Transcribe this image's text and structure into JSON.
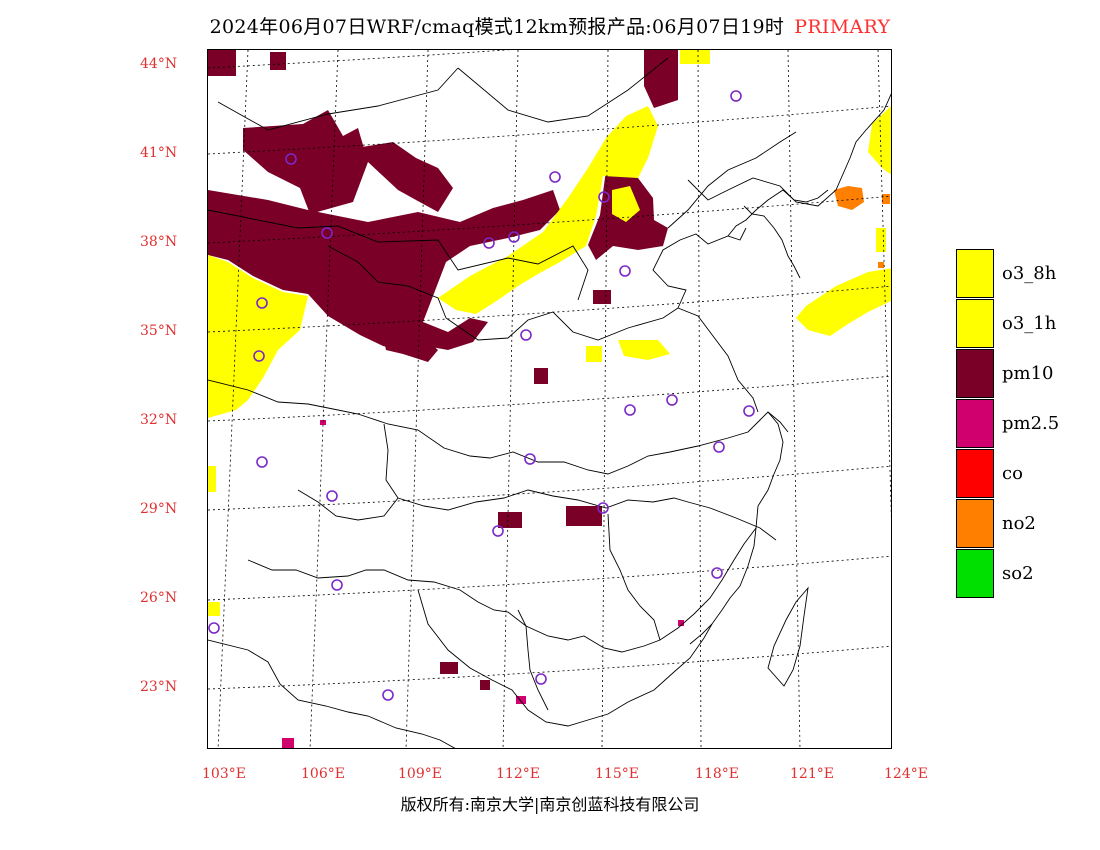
{
  "header": {
    "title": "2024年06月07日WRF/cmaq模式12km预报产品:06月07日19时",
    "mode": "PRIMARY"
  },
  "axes": {
    "latitudes": [
      "44°N",
      "41°N",
      "38°N",
      "35°N",
      "32°N",
      "29°N",
      "26°N",
      "23°N"
    ],
    "longitudes": [
      "103°E",
      "106°E",
      "109°E",
      "112°E",
      "115°E",
      "118°E",
      "121°E",
      "124°E"
    ]
  },
  "legend": {
    "items": [
      {
        "label": "o3_8h",
        "color": "#ffff00"
      },
      {
        "label": "o3_1h",
        "color": "#ffff00"
      },
      {
        "label": "pm10",
        "color": "#7a0028"
      },
      {
        "label": "pm2.5",
        "color": "#d0006f"
      },
      {
        "label": "co",
        "color": "#ff0000"
      },
      {
        "label": "no2",
        "color": "#ff7f00"
      },
      {
        "label": "so2",
        "color": "#00e000"
      }
    ]
  },
  "footer": {
    "copyright": "版权所有:南京大学|南京创蓝科技有限公司"
  },
  "colors": {
    "tick_labels": "#e03030",
    "primary": "#ff3030",
    "station_marker": "#7a28c8"
  }
}
